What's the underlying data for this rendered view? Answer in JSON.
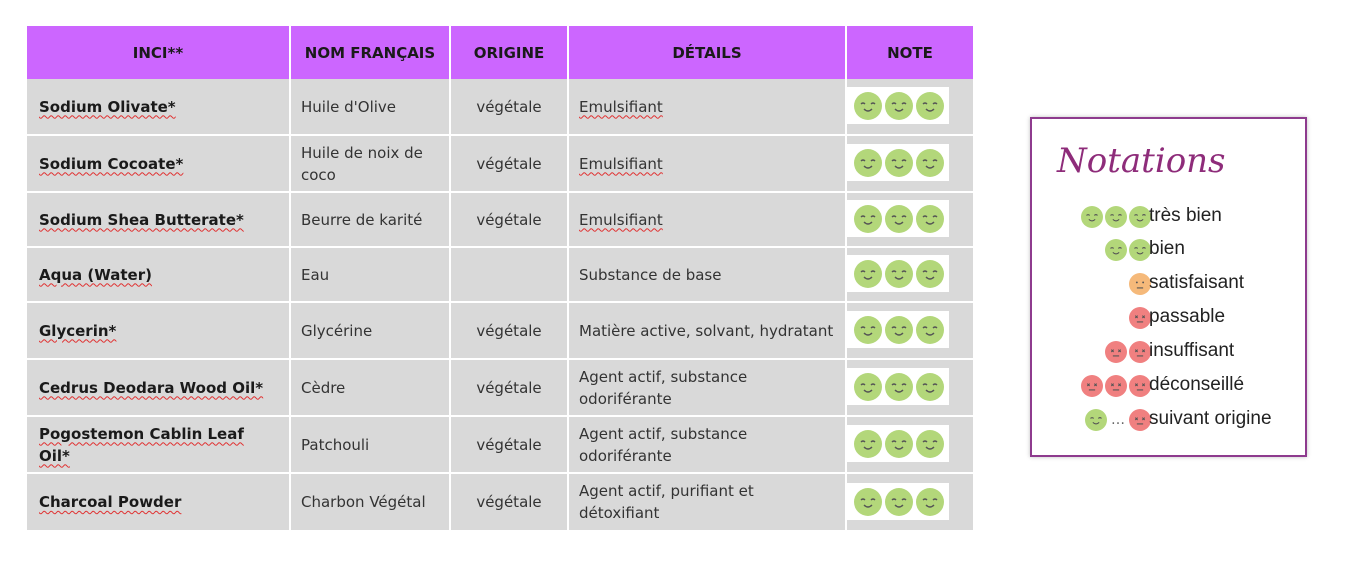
{
  "table": {
    "headers": [
      "INCI**",
      "NOM FRANÇAIS",
      "ORIGINE",
      "DÉTAILS",
      "NOTE"
    ],
    "rows": [
      {
        "inci": "Sodium Olivate*",
        "nom": "Huile d'Olive",
        "origine": "végétale",
        "details": "Emulsifiant",
        "note": "très bien",
        "height": 56
      },
      {
        "inci": "Sodium Cocoate*",
        "nom": "Huile de noix de coco",
        "origine": "végétale",
        "details": "Emulsifiant",
        "note": "très bien",
        "height": 57
      },
      {
        "inci": "Sodium Shea Butterate*",
        "nom": "Beurre de karité",
        "origine": "végétale",
        "details": "Emulsifiant",
        "note": "très bien",
        "height": 55
      },
      {
        "inci": "Aqua (Water)",
        "nom": "Eau",
        "origine": "",
        "details": "Substance de base",
        "note": "très bien",
        "height": 55
      },
      {
        "inci": "Glycerin*",
        "nom": "Glycérine",
        "origine": "végétale",
        "details": "Matière active, solvant, hydratant",
        "note": "très bien",
        "height": 57
      },
      {
        "inci": "Cedrus Deodara Wood Oil*",
        "nom": "Cèdre",
        "origine": "végétale",
        "details": "Agent actif, substance odoriférante",
        "note": "très bien",
        "height": 57
      },
      {
        "inci": "Pogostemon Cablin Leaf Oil*",
        "nom": "Patchouli",
        "origine": "végétale",
        "details": "Agent actif, substance odoriférante",
        "note": "très bien",
        "height": 57
      },
      {
        "inci": "Charcoal Powder",
        "nom": "Charbon Végétal",
        "origine": "végétale",
        "details": "Agent actif, purifiant et détoxifiant",
        "note": "très bien",
        "height": 58
      }
    ]
  },
  "legend": {
    "title": "Notations",
    "items": [
      {
        "label": "très bien",
        "faces": [
          "green",
          "green",
          "green"
        ]
      },
      {
        "label": "bien",
        "faces": [
          "green",
          "green"
        ]
      },
      {
        "label": "satisfaisant",
        "faces": [
          "orange"
        ]
      },
      {
        "label": "passable",
        "faces": [
          "red"
        ]
      },
      {
        "label": "insuffisant",
        "faces": [
          "red",
          "red"
        ]
      },
      {
        "label": "déconseillé",
        "faces": [
          "red",
          "red",
          "red"
        ]
      },
      {
        "label": "suivant origine",
        "faces": [
          "green",
          "dots",
          "red"
        ]
      }
    ]
  },
  "colors": {
    "header_bg": "#cc66ff",
    "row_bg": "#d9d9d9",
    "green_face": "#b3d77a",
    "orange_face": "#f5b97a",
    "red_face": "#f08080",
    "legend_border": "#8e3b8e",
    "legend_title": "#8e2c7a"
  }
}
